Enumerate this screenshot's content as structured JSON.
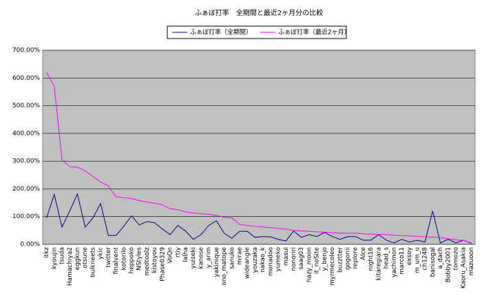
{
  "chart_data": {
    "type": "line",
    "title": "ふぁぼ打率　全期間と最近2ヶ月分の比較",
    "categories": [
      "itkz",
      "kyoujin",
      "tsuda",
      "Hamachiya2",
      "eggkun",
      "otsune",
      "bulkneets",
      "ykic",
      "twitter",
      "finalvent",
      "kotorilo",
      "heppoko",
      "NStyles",
      "medtoolz",
      "kistoyou",
      "Phase0329",
      "VoQn",
      "rtiy",
      "lalha",
      "yuiseki",
      "kanose",
      "y_arim",
      "yakinique",
      "ono_matope",
      "sanuko",
      "mirae",
      "wideangle",
      "youzaka",
      "nakao_k",
      "monadoo",
      "yumeko",
      "masui",
      "nonoriri",
      "saag03",
      "hazy_moon",
      "it_noSite",
      "y_benjo",
      "myrmecoleo",
      "buzztter",
      "gogonii",
      "replore",
      "Alce",
      "night16",
      "kitaregiara",
      "head_s",
      "yachimon",
      "marco11",
      "exsoy",
      "m_um_u",
      "ch1248",
      "banisogal",
      "a_dach",
      "Bobby2001",
      "tomozo",
      "Kaoru_Asakia",
      "mazuoon"
    ],
    "series": [
      {
        "name": "ふぁぼ打率（全期間）",
        "color": "#000080",
        "values": [
          95,
          180,
          62,
          120,
          182,
          62,
          95,
          147,
          32,
          32,
          65,
          103,
          70,
          82,
          78,
          55,
          35,
          68,
          48,
          18,
          35,
          68,
          85,
          40,
          22,
          47,
          47,
          25,
          28,
          27,
          18,
          12,
          48,
          25,
          35,
          28,
          43,
          28,
          18,
          28,
          28,
          15,
          15,
          35,
          15,
          5,
          18,
          8,
          15,
          8,
          120,
          5,
          18,
          5,
          15,
          3
        ]
      },
      {
        "name": "ふぁぼ打率（最近2ヶ月）",
        "color": "#ff00ff",
        "values": [
          620,
          570,
          305,
          280,
          278,
          265,
          245,
          225,
          210,
          172,
          168,
          165,
          158,
          152,
          148,
          143,
          128,
          125,
          117,
          113,
          110,
          108,
          105,
          97,
          95,
          72,
          68,
          65,
          63,
          60,
          57,
          55,
          50,
          48,
          47,
          45,
          44,
          42,
          40,
          40,
          40,
          38,
          37,
          36,
          35,
          33,
          31,
          30,
          29,
          27,
          26,
          24,
          20,
          16,
          14,
          5
        ]
      }
    ],
    "ylim": [
      0,
      700
    ],
    "yticks": [
      {
        "value": 0,
        "label": "0.00%"
      },
      {
        "value": 100,
        "label": "100.00%"
      },
      {
        "value": 200,
        "label": "200.00%"
      },
      {
        "value": 300,
        "label": "300.00%"
      },
      {
        "value": 400,
        "label": "400.00%"
      },
      {
        "value": 500,
        "label": "500.00%"
      },
      {
        "value": 600,
        "label": "600.00%"
      },
      {
        "value": 700,
        "label": "700.00%"
      }
    ],
    "grid": true,
    "legend": "top"
  }
}
